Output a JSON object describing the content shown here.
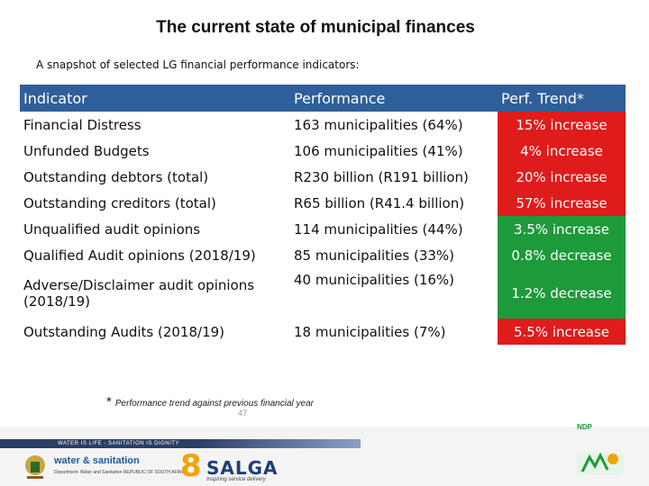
{
  "title": "The current state of municipal finances",
  "subtitle": "A snapshot of selected LG financial performance indicators:",
  "table": {
    "headers": [
      "Indicator",
      "Performance",
      "Perf. Trend*"
    ],
    "rows": [
      {
        "indicator": "Financial Distress",
        "performance": "163 municipalities (64%)",
        "trend": "15% increase",
        "trend_color": "#e01b1b"
      },
      {
        "indicator": "Unfunded Budgets",
        "performance": "106 municipalities (41%)",
        "trend": "4% increase",
        "trend_color": "#e01b1b"
      },
      {
        "indicator": "Outstanding debtors (total)",
        "performance": "R230 billion (R191 billion)",
        "trend": "20% increase",
        "trend_color": "#e01b1b"
      },
      {
        "indicator": "Outstanding creditors (total)",
        "performance": "R65 billion (R41.4 billion)",
        "trend": "57% increase",
        "trend_color": "#e01b1b"
      },
      {
        "indicator": "Unqualified audit opinions",
        "performance": "114 municipalities (44%)",
        "trend": "3.5% increase",
        "trend_color": "#1d9a3a"
      },
      {
        "indicator": "Qualified Audit opinions (2018/19)",
        "performance": "85 municipalities (33%)",
        "trend": "0.8% decrease",
        "trend_color": "#1d9a3a"
      },
      {
        "indicator": "Adverse/Disclaimer audit opinions (2018/19)",
        "performance": "40 municipalities (16%)",
        "trend": "1.2%  decrease",
        "trend_color": "#1d9a3a"
      },
      {
        "indicator": "Outstanding Audits (2018/19)",
        "performance": "18 municipalities (7%)",
        "trend": "5.5% increase",
        "trend_color": "#e01b1b"
      }
    ]
  },
  "footnote": {
    "star": "*",
    "text": "Performance trend against previous financial year"
  },
  "page_number": "47",
  "footer": {
    "strip_text": "WATER IS LIFE - SANITATION IS DIGNITY",
    "ws_name": "water & sanitation",
    "ws_dept": "Department: Water and Sanitation REPUBLIC OF SOUTH AFRICA",
    "salga_number": "8",
    "salga_name": "SALGA",
    "salga_tag": "Inspiring service delivery",
    "ndp_label": "NDP"
  },
  "colors": {
    "header_bg": "#2f5f9a",
    "increase_bad": "#e01b1b",
    "positive": "#1d9a3a"
  }
}
